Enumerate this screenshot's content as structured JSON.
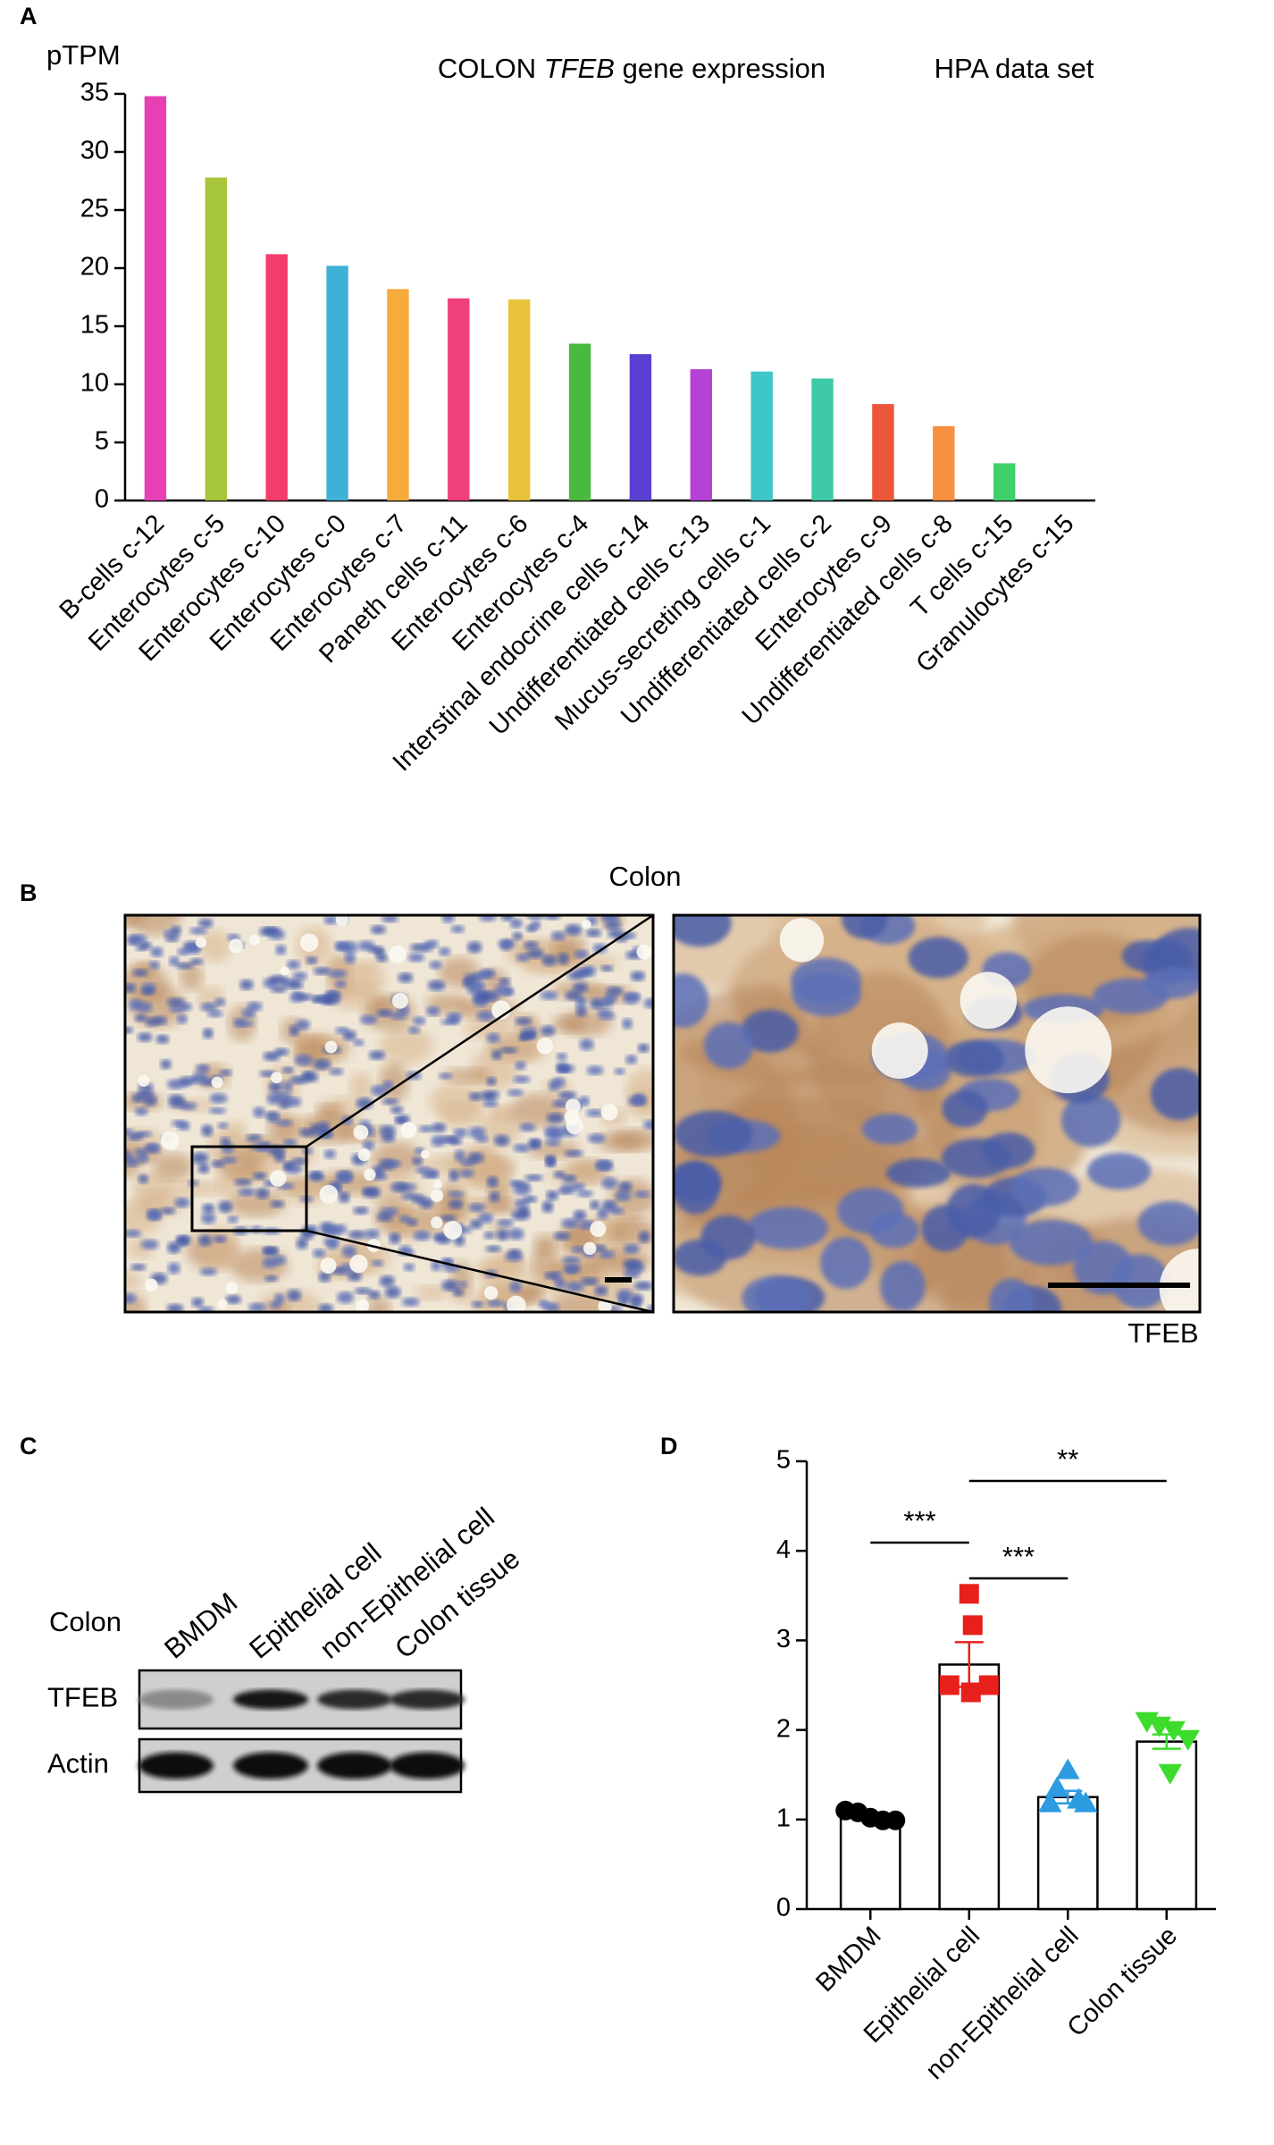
{
  "chart_data": [
    {
      "type": "bar",
      "panel_label": "A",
      "title": {
        "prefix": "COLON",
        "gene": "TFEB",
        "suffix": "gene expression"
      },
      "subtitle": "HPA data set",
      "ylabel": "pTPM",
      "categories": [
        "B-cells c-12",
        "Enterocytes c-5",
        "Enterocytes c-10",
        "Enterocytes c-0",
        "Enterocytes c-7",
        "Paneth cells c-11",
        "Enterocytes c-6",
        "Enterocytes c-4",
        "Interstinal endocrine cells c-14",
        "Undifferentiated cells c-13",
        "Mucus-secreting cells c-1",
        "Undifferentiated cells c-2",
        "Enterocytes c-9",
        "Undifferentiated cells c-8",
        "T cells c-15",
        "Granulocytes c-15"
      ],
      "values": [
        34.8,
        27.8,
        21.2,
        20.2,
        18.2,
        17.4,
        17.3,
        13.5,
        12.6,
        11.3,
        11.1,
        10.5,
        8.3,
        6.4,
        3.2,
        0
      ],
      "colors": [
        "#e83fb5",
        "#a8c63a",
        "#f33e6b",
        "#3fb1d6",
        "#f7ab3a",
        "#f0407a",
        "#e8c23a",
        "#4aba3e",
        "#5b3fd3",
        "#b442d4",
        "#3ec6c9",
        "#3ecaa8",
        "#ec5638",
        "#f79040",
        "#3fcf6a",
        "#3fb1d6"
      ],
      "ylim": [
        0,
        35
      ],
      "yticks": [
        0,
        5,
        10,
        15,
        20,
        25,
        30,
        35
      ],
      "grid": false
    },
    {
      "type": "bar_scatter",
      "panel_label": "D",
      "categories": [
        "BMDM",
        "Epithelial cell",
        "non-Epithelial cell",
        "Colon tissue"
      ],
      "values": [
        1.02,
        2.73,
        1.25,
        1.87
      ],
      "errors": [
        0.03,
        0.25,
        0.07,
        0.08
      ],
      "points": [
        [
          1.1,
          1.08,
          1.02,
          0.99,
          0.99
        ],
        [
          3.52,
          3.17,
          2.5,
          2.5,
          2.42
        ],
        [
          1.55,
          1.35,
          1.22,
          1.18,
          1.18
        ],
        [
          2.1,
          2.05,
          2.0,
          1.9,
          1.52
        ]
      ],
      "colors": [
        "#000000",
        "#e8201c",
        "#2c9be0",
        "#3ddc2c"
      ],
      "markers": [
        "circle",
        "square",
        "triangle-up",
        "triangle-down"
      ],
      "color": "#ffffff",
      "edgecolor": "#000000",
      "comparisons": [
        {
          "groups": [
            "BMDM",
            "Epithelial cell"
          ],
          "label": "***"
        },
        {
          "groups": [
            "Epithelial cell",
            "non-Epithelial cell"
          ],
          "label": "***"
        },
        {
          "groups": [
            "Epithelial cell",
            "Colon tissue"
          ],
          "label": "**"
        }
      ],
      "ylim": [
        0,
        5
      ],
      "yticks": [
        0,
        1,
        2,
        3,
        4,
        5
      ],
      "grid": false
    }
  ],
  "panel_b": {
    "label": "B",
    "title": "Colon",
    "stain": "TFEB"
  },
  "panel_c": {
    "label": "C",
    "tissue": "Colon",
    "lanes": [
      "BMDM",
      "Epithelial cell",
      "non-Epithelial cell",
      "Colon tissue"
    ],
    "rows": [
      "TFEB",
      "Actin"
    ]
  }
}
